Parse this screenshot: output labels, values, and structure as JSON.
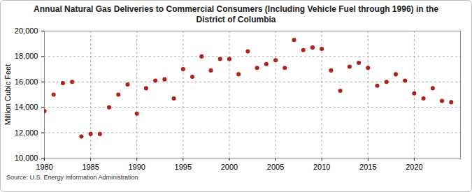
{
  "chart_data": {
    "type": "scatter",
    "title": "Annual Natural Gas Deliveries to Commercial Consumers (Including Vehicle Fuel through 1996) in the District of Columbia",
    "caption": "Source: U.S. Energy Information Administration",
    "y_label": "Million Cubic Feet",
    "x": [
      1980,
      1981,
      1982,
      1983,
      1984,
      1985,
      1986,
      1987,
      1988,
      1989,
      1990,
      1991,
      1992,
      1993,
      1994,
      1995,
      1996,
      1997,
      1998,
      1999,
      2000,
      2001,
      2002,
      2003,
      2004,
      2005,
      2006,
      2007,
      2008,
      2009,
      2010,
      2011,
      2012,
      2013,
      2014,
      2015,
      2016,
      2017,
      2018,
      2019,
      2020,
      2021,
      2022,
      2023,
      2024
    ],
    "values": [
      13700,
      15000,
      15900,
      16000,
      11700,
      11900,
      11900,
      14000,
      15000,
      15800,
      13500,
      15500,
      16100,
      16200,
      14700,
      17000,
      16400,
      18000,
      16900,
      17800,
      17800,
      16600,
      18400,
      17100,
      17400,
      17700,
      17100,
      19300,
      18500,
      18700,
      18600,
      16900,
      15300,
      17200,
      17500,
      17100,
      15700,
      16000,
      16600,
      16100,
      15100,
      14700,
      15500,
      14500,
      14400
    ],
    "color": "#b0231a",
    "marker": "circle",
    "xlim": [
      1980,
      2025
    ],
    "xticks": [
      1980,
      1985,
      1990,
      1995,
      2000,
      2005,
      2010,
      2015,
      2020
    ],
    "ylim": [
      10000,
      20000
    ],
    "yticks": [
      {
        "value": 10000,
        "label": "10,000"
      },
      {
        "value": 12000,
        "label": "12,000"
      },
      {
        "value": 14000,
        "label": "14,000"
      },
      {
        "value": 16000,
        "label": "16,000"
      },
      {
        "value": 18000,
        "label": "18,000"
      },
      {
        "value": 20000,
        "label": "20,000"
      }
    ],
    "grid": true
  }
}
